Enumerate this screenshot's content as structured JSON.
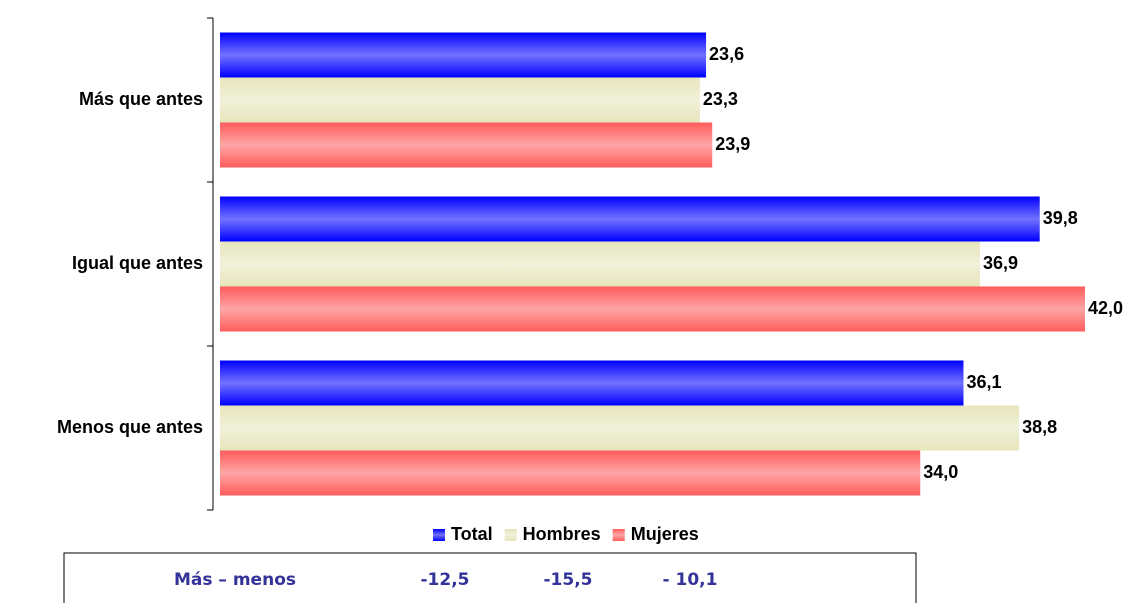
{
  "chart_data": {
    "type": "bar",
    "orientation": "horizontal",
    "categories": [
      "Más que antes",
      "Igual que antes",
      "Menos que antes"
    ],
    "series": [
      {
        "name": "Total",
        "color": "#0000ff",
        "values": [
          23.6,
          39.8,
          36.1
        ],
        "value_labels": [
          "23,6",
          "39,8",
          "36,1"
        ]
      },
      {
        "name": "Hombres",
        "color": "#e6e6bc",
        "values": [
          23.3,
          36.9,
          38.8
        ],
        "value_labels": [
          "23,3",
          "36,9",
          "38,8"
        ]
      },
      {
        "name": "Mujeres",
        "color": "#ff5c5c",
        "values": [
          23.9,
          42.0,
          34.0
        ],
        "value_labels": [
          "23,9",
          "42,0",
          "34,0"
        ]
      }
    ],
    "legend": "bottom"
  },
  "summary_box": {
    "label": "Más – menos",
    "values": [
      "-12,5",
      "-15,5",
      "- 10,1"
    ]
  }
}
